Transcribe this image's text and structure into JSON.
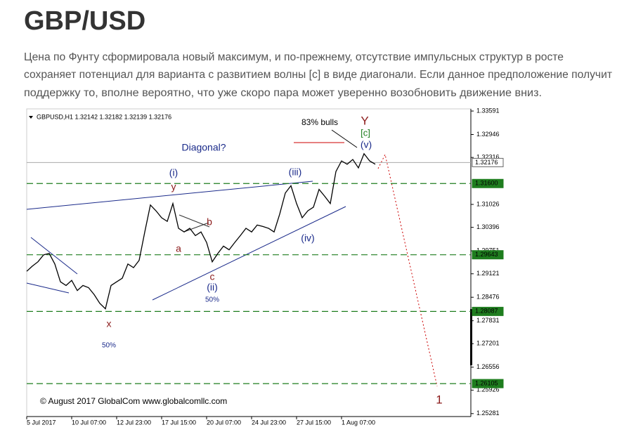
{
  "header": {
    "title": "GBP/USD"
  },
  "paragraph_lines": [
    "Цена по Фунту сформировала новый максимум, и по-прежнему, отсутствие импульсных структур в росте",
    "сохраняет потенциал для варианта с развитием волны [c] в виде диагонали. Если данное предположение получит",
    "поддержку то, вполне вероятно, что уже скоро пара может уверенно возобновить движение вниз."
  ],
  "chart_data": {
    "type": "line",
    "title": "GBPUSD,H1  1.32142 1.32182 1.32139 1.32176",
    "categories": [
      "5 Jul 2017",
      null,
      null,
      null,
      null,
      null,
      null,
      null,
      "10 Jul 07:00",
      null,
      null,
      null,
      null,
      null,
      null,
      null,
      "12 Jul 23:00",
      null,
      null,
      null,
      null,
      null,
      null,
      null,
      "17 Jul 15:00",
      null,
      null,
      null,
      null,
      null,
      null,
      null,
      "20 Jul 07:00",
      null,
      null,
      null,
      null,
      null,
      null,
      null,
      "24 Jul 23:00",
      null,
      null,
      null,
      null,
      null,
      null,
      null,
      "27 Jul 15:00",
      null,
      null,
      null,
      null,
      null,
      null,
      null,
      "1 Aug 07:00",
      null,
      null,
      null,
      null,
      null,
      null
    ],
    "values": [
      1.2919,
      1.2933,
      1.2945,
      1.2964,
      1.2968,
      1.2939,
      1.289,
      1.288,
      1.2894,
      1.2866,
      1.288,
      1.2874,
      1.2855,
      1.2831,
      1.2816,
      1.288,
      1.289,
      1.29,
      1.2939,
      1.2929,
      1.2949,
      1.3027,
      1.3101,
      1.3085,
      1.3066,
      1.3056,
      1.3105,
      1.3037,
      1.3027,
      1.3037,
      1.3017,
      1.3027,
      1.2998,
      1.2945,
      1.2968,
      1.2988,
      1.2978,
      1.2998,
      1.3017,
      1.3037,
      1.3027,
      1.3046,
      1.3042,
      1.3037,
      1.3027,
      1.3076,
      1.3134,
      1.3154,
      1.3105,
      1.3066,
      1.3085,
      1.3095,
      1.3144,
      1.3125,
      1.3105,
      1.3193,
      1.3222,
      1.3213,
      1.3226,
      1.3203,
      1.3242,
      1.3222,
      1.3213
    ],
    "color": "#000000",
    "ylim": [
      1.252,
      1.3365
    ],
    "yticks": [
      1.33591,
      1.32946,
      1.32316,
      1.31026,
      1.30396,
      1.29751,
      1.29121,
      1.28476,
      1.27831,
      1.27201,
      1.26556,
      1.25926,
      1.25281
    ],
    "levels": [
      1.32176,
      {
        "value": 1.316,
        "label": "1.31600"
      },
      1.29643,
      1.28087,
      1.26105
    ],
    "level_color": "#1e7d1e",
    "annotations": [
      "Diagonal?",
      "(i)",
      "y",
      "b",
      "a",
      "c",
      "(ii)",
      "50%",
      "x",
      "50%",
      "(iii)",
      "(iv)",
      "83% bulls",
      "Y",
      "[c]",
      "(v)",
      "1",
      "© August 2017 GlobalCom www.globalcomllc.com"
    ]
  }
}
